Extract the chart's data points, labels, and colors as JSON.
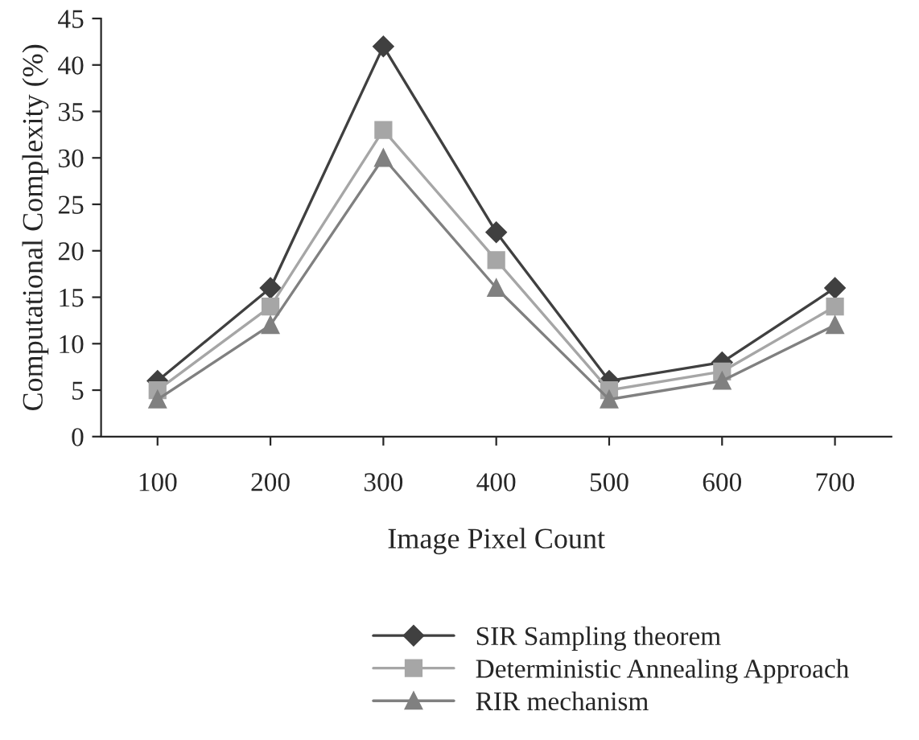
{
  "chart_data": {
    "type": "line",
    "xlabel": "Image Pixel Count",
    "ylabel": "Computational Complexity (%)",
    "categories": [
      "100",
      "200",
      "300",
      "400",
      "500",
      "600",
      "700"
    ],
    "series": [
      {
        "name": "SIR Sampling theorem",
        "color": "#404040",
        "marker": "diamond",
        "values": [
          6,
          16,
          42,
          22,
          6,
          8,
          16
        ]
      },
      {
        "name": "Deterministic Annealing Approach",
        "color": "#a6a6a6",
        "marker": "square",
        "values": [
          5,
          14,
          33,
          19,
          5,
          7,
          14
        ]
      },
      {
        "name": "RIR mechanism",
        "color": "#808080",
        "marker": "triangle",
        "values": [
          4,
          12,
          30,
          16,
          4,
          6,
          12
        ]
      }
    ],
    "ylim": [
      0,
      45
    ],
    "yticks": [
      0,
      5,
      10,
      15,
      20,
      25,
      30,
      35,
      40,
      45
    ],
    "grid": false,
    "legend": "bottom",
    "line_style": "solid"
  }
}
